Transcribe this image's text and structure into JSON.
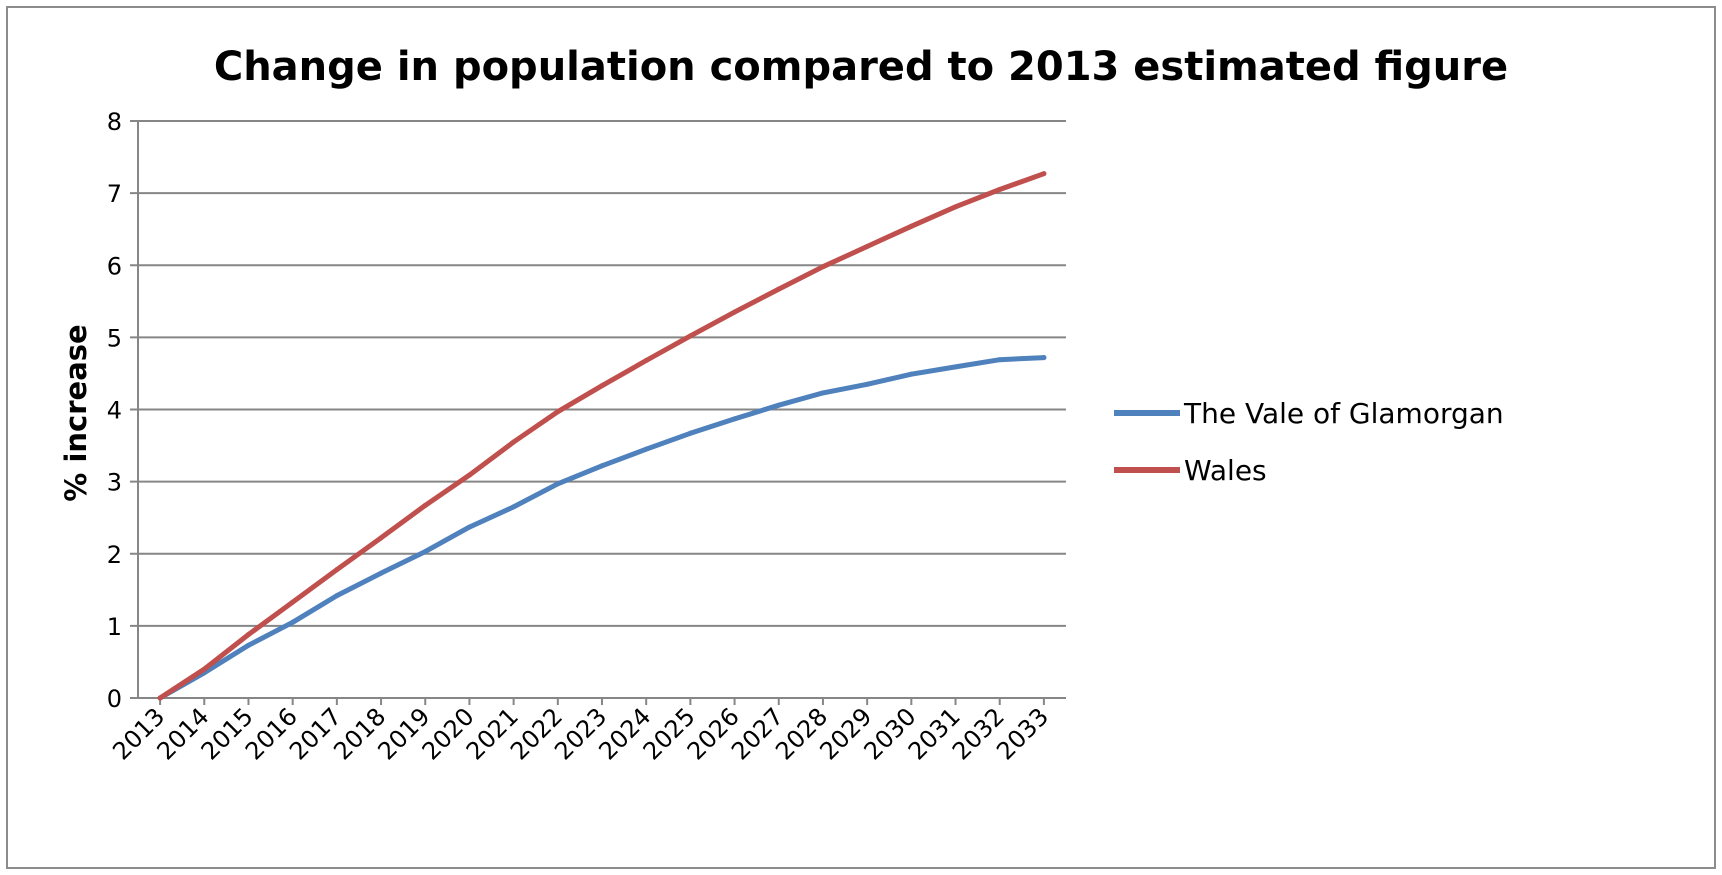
{
  "chart_data": {
    "type": "line",
    "title": "Change in population compared to 2013 estimated figure",
    "xlabel": "",
    "ylabel": "% increase",
    "categories": [
      "2013",
      "2014",
      "2015",
      "2016",
      "2017",
      "2018",
      "2019",
      "2020",
      "2021",
      "2022",
      "2023",
      "2024",
      "2025",
      "2026",
      "2027",
      "2028",
      "2029",
      "2030",
      "2031",
      "2032",
      "2033"
    ],
    "ylim": [
      0,
      8
    ],
    "yticks": [
      "0",
      "1",
      "2",
      "3",
      "4",
      "5",
      "6",
      "7",
      "8"
    ],
    "grid": true,
    "legend_position": "right",
    "series": [
      {
        "name": "The Vale of Glamorgan",
        "color": "#4f81bd",
        "values": [
          0,
          0.35,
          0.73,
          1.05,
          1.42,
          1.73,
          2.03,
          2.37,
          2.65,
          2.97,
          3.22,
          3.45,
          3.67,
          3.87,
          4.06,
          4.23,
          4.35,
          4.49,
          4.59,
          4.69,
          4.72
        ]
      },
      {
        "name": "Wales",
        "color": "#c0504d",
        "values": [
          0,
          0.4,
          0.88,
          1.33,
          1.78,
          2.22,
          2.67,
          3.09,
          3.55,
          3.97,
          4.33,
          4.68,
          5.02,
          5.35,
          5.67,
          5.98,
          6.26,
          6.54,
          6.81,
          7.05,
          7.27
        ]
      }
    ]
  }
}
